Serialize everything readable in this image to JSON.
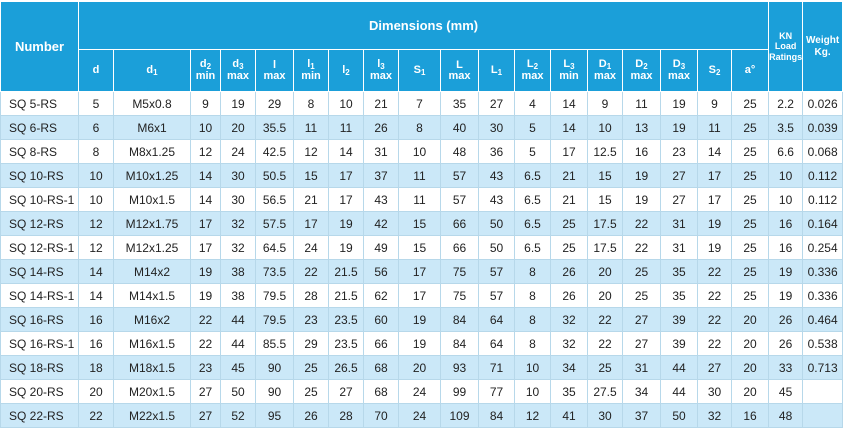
{
  "table": {
    "header": {
      "number": "Number",
      "dimensions": "Dimensions (mm)",
      "load": [
        "KN",
        "Load",
        "Ratings"
      ],
      "weight": [
        "Weight",
        "Kg."
      ],
      "columns": [
        {
          "symbol": "d"
        },
        {
          "symbol": "d",
          "sub": "1"
        },
        {
          "symbol": "d",
          "sub": "2",
          "note": "min"
        },
        {
          "symbol": "d",
          "sub": "3",
          "note": "max"
        },
        {
          "symbol": "l",
          "note": "max"
        },
        {
          "symbol": "l",
          "sub": "1",
          "note": "min"
        },
        {
          "symbol": "l",
          "sub": "2"
        },
        {
          "symbol": "l",
          "sub": "3",
          "note": "max"
        },
        {
          "symbol": "S",
          "sub": "1"
        },
        {
          "symbol": "L",
          "note": "max"
        },
        {
          "symbol": "L",
          "sub": "1"
        },
        {
          "symbol": "L",
          "sub": "2",
          "note": "max"
        },
        {
          "symbol": "L",
          "sub": "3",
          "note": "min"
        },
        {
          "symbol": "D",
          "sub": "1",
          "note": "max"
        },
        {
          "symbol": "D",
          "sub": "2",
          "note": "max"
        },
        {
          "symbol": "D",
          "sub": "3",
          "note": "max"
        },
        {
          "symbol": "S",
          "sub": "2"
        },
        {
          "symbol": "a°"
        }
      ]
    },
    "rows": [
      [
        "SQ 5-RS",
        5,
        "M5x0.8",
        9,
        19,
        29,
        8,
        10,
        21,
        7,
        35,
        27,
        4,
        14,
        9,
        11,
        19,
        9,
        25,
        2.2,
        0.026
      ],
      [
        "SQ 6-RS",
        6,
        "M6x1",
        10,
        20,
        35.5,
        11,
        11,
        26,
        8,
        40,
        30,
        5,
        14,
        10,
        13,
        19,
        11,
        25,
        3.5,
        0.039
      ],
      [
        "SQ 8-RS",
        8,
        "M8x1.25",
        12,
        24,
        42.5,
        12,
        14,
        31,
        10,
        48,
        36,
        5,
        17,
        12.5,
        16,
        23,
        14,
        25,
        6.6,
        0.068
      ],
      [
        "SQ 10-RS",
        10,
        "M10x1.25",
        14,
        30,
        50.5,
        15,
        17,
        37,
        11,
        57,
        43,
        6.5,
        21,
        15,
        19,
        27,
        17,
        25,
        10,
        0.112
      ],
      [
        "SQ 10-RS-1",
        10,
        "M10x1.5",
        14,
        30,
        56.5,
        21,
        17,
        43,
        11,
        57,
        43,
        6.5,
        21,
        15,
        19,
        27,
        17,
        25,
        10,
        0.112
      ],
      [
        "SQ 12-RS",
        12,
        "M12x1.75",
        17,
        32,
        57.5,
        17,
        19,
        42,
        15,
        66,
        50,
        6.5,
        25,
        17.5,
        22,
        31,
        19,
        25,
        16,
        0.164
      ],
      [
        "SQ 12-RS-1",
        12,
        "M12x1.25",
        17,
        32,
        64.5,
        24,
        19,
        49,
        15,
        66,
        50,
        6.5,
        25,
        17.5,
        22,
        31,
        19,
        25,
        16,
        0.254
      ],
      [
        "SQ 14-RS",
        14,
        "M14x2",
        19,
        38,
        73.5,
        22,
        21.5,
        56,
        17,
        75,
        57,
        8,
        26,
        20,
        25,
        35,
        22,
        25,
        19,
        0.336
      ],
      [
        "SQ 14-RS-1",
        14,
        "M14x1.5",
        19,
        38,
        79.5,
        28,
        21.5,
        62,
        17,
        75,
        57,
        8,
        26,
        20,
        25,
        35,
        22,
        25,
        19,
        0.336
      ],
      [
        "SQ 16-RS",
        16,
        "M16x2",
        22,
        44,
        79.5,
        23,
        23.5,
        60,
        19,
        84,
        64,
        8,
        32,
        22,
        27,
        39,
        22,
        20,
        26,
        0.464
      ],
      [
        "SQ 16-RS-1",
        16,
        "M16x1.5",
        22,
        44,
        85.5,
        29,
        23.5,
        66,
        19,
        84,
        64,
        8,
        32,
        22,
        27,
        39,
        22,
        20,
        26,
        0.538
      ],
      [
        "SQ 18-RS",
        18,
        "M18x1.5",
        23,
        45,
        90,
        25,
        26.5,
        68,
        20,
        93,
        71,
        10,
        34,
        25,
        31,
        44,
        27,
        20,
        33,
        0.713
      ],
      [
        "SQ 20-RS",
        20,
        "M20x1.5",
        27,
        50,
        90,
        25,
        27,
        68,
        24,
        99,
        77,
        10,
        35,
        27.5,
        34,
        44,
        30,
        20,
        45,
        null
      ],
      [
        "SQ 22-RS",
        22,
        "M22x1.5",
        27,
        52,
        95,
        26,
        28,
        70,
        24,
        109,
        84,
        12,
        41,
        30,
        37,
        50,
        32,
        16,
        48,
        null
      ]
    ]
  }
}
